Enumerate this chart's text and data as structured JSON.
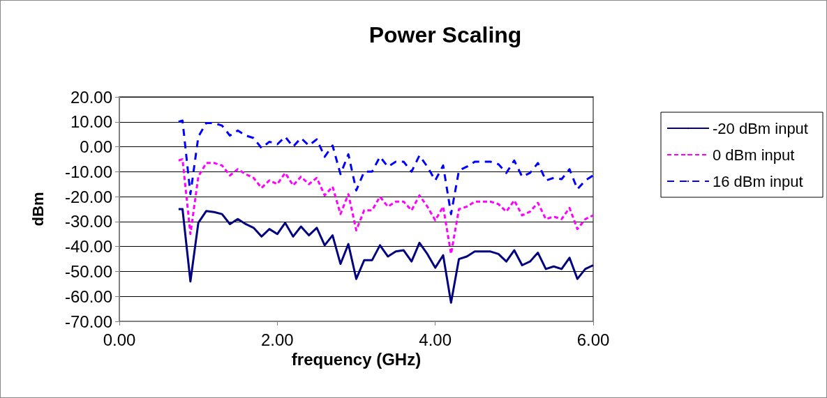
{
  "chart_data": {
    "type": "line",
    "title": "Power Scaling",
    "xlabel": "frequency (GHz)",
    "ylabel": "dBm",
    "x": [
      0.75,
      0.8,
      0.9,
      1.0,
      1.1,
      1.2,
      1.3,
      1.4,
      1.5,
      1.6,
      1.7,
      1.8,
      1.9,
      2.0,
      2.1,
      2.2,
      2.3,
      2.4,
      2.5,
      2.6,
      2.7,
      2.8,
      2.9,
      3.0,
      3.1,
      3.2,
      3.3,
      3.4,
      3.5,
      3.6,
      3.7,
      3.8,
      3.9,
      4.0,
      4.1,
      4.2,
      4.3,
      4.4,
      4.5,
      4.6,
      4.7,
      4.8,
      4.9,
      5.0,
      5.1,
      5.2,
      5.3,
      5.4,
      5.5,
      5.6,
      5.7,
      5.8,
      5.9,
      6.0
    ],
    "series": [
      {
        "name": "-20 dBm input",
        "color": "#000080",
        "line_style": "solid",
        "values": [
          -25,
          -25,
          -54,
          -30.5,
          -25.8,
          -26.2,
          -27,
          -31,
          -29,
          -31,
          -32.5,
          -36,
          -33,
          -35,
          -30.5,
          -36,
          -32,
          -35.5,
          -32.5,
          -39.5,
          -35.5,
          -47,
          -39,
          -53,
          -45.5,
          -45.5,
          -39.5,
          -44,
          -42,
          -41.5,
          -46,
          -38.5,
          -43,
          -48.5,
          -43.5,
          -62.5,
          -45,
          -44,
          -42,
          -42,
          -42,
          -43,
          -46,
          -41.5,
          -47.5,
          -46,
          -42.5,
          -49,
          -48,
          -49,
          -44.5,
          -53,
          -49,
          -47.5
        ]
      },
      {
        "name": "0 dBm input",
        "color": "#ff00ff",
        "line_style": "dotted",
        "values": [
          -5.5,
          -5,
          -35,
          -12,
          -6.5,
          -6.5,
          -7.5,
          -11.5,
          -9,
          -11,
          -12.5,
          -16.5,
          -13.5,
          -15,
          -10.5,
          -15.5,
          -12,
          -15,
          -12.5,
          -19.5,
          -16,
          -27,
          -19,
          -33.5,
          -25.5,
          -25.5,
          -20,
          -24,
          -22,
          -22,
          -25.5,
          -19.5,
          -24,
          -29.5,
          -24,
          -43,
          -25,
          -24,
          -22,
          -22,
          -22,
          -23,
          -26,
          -21.5,
          -27.5,
          -26,
          -22.5,
          -29,
          -28,
          -29,
          -24.5,
          -33,
          -29,
          -27.5
        ]
      },
      {
        "name": "16 dBm input",
        "color": "#0000ff",
        "line_style": "dashed",
        "values": [
          10,
          10.5,
          -19,
          4,
          9.5,
          9.5,
          8.5,
          4.5,
          6.5,
          4.5,
          3.5,
          -0.5,
          2,
          1,
          4,
          0,
          3.5,
          0.5,
          3,
          -4,
          0.5,
          -11,
          -3,
          -17.5,
          -10,
          -10,
          -4,
          -8,
          -6,
          -6,
          -10,
          -3.5,
          -8,
          -13.5,
          -7.5,
          -27,
          -9.5,
          -8,
          -6,
          -6,
          -6,
          -7,
          -10.5,
          -5.5,
          -12,
          -10.5,
          -6.5,
          -13.5,
          -12.5,
          -13,
          -9,
          -17,
          -13.5,
          -11.5
        ]
      }
    ],
    "xlim": [
      0,
      6
    ],
    "xticks": [
      {
        "value": 0,
        "label": "0.00"
      },
      {
        "value": 2,
        "label": "2.00"
      },
      {
        "value": 4,
        "label": "4.00"
      },
      {
        "value": 6,
        "label": "6.00"
      }
    ],
    "ylim": [
      -70,
      20
    ],
    "yticks": [
      {
        "value": -70,
        "label": "-70.00"
      },
      {
        "value": -60,
        "label": "-60.00"
      },
      {
        "value": -50,
        "label": "-50.00"
      },
      {
        "value": -40,
        "label": "-40.00"
      },
      {
        "value": -30,
        "label": "-30.00"
      },
      {
        "value": -20,
        "label": "-20.00"
      },
      {
        "value": -10,
        "label": "-10.00"
      },
      {
        "value": 0,
        "label": "0.00"
      },
      {
        "value": 10,
        "label": "10.00"
      },
      {
        "value": 20,
        "label": "20.00"
      }
    ],
    "grid": "y",
    "legend": "right",
    "marker": "none"
  }
}
